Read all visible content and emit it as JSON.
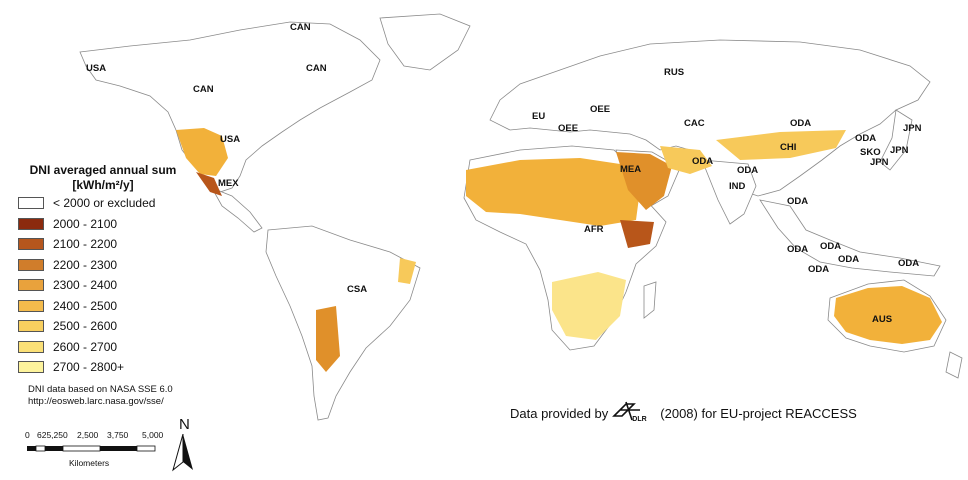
{
  "map": {
    "region_labels": {
      "can_north": "CAN",
      "usa_alaska": "USA",
      "can_east": "CAN",
      "can_main": "CAN",
      "usa": "USA",
      "mex": "MEX",
      "csa": "CSA",
      "rus": "RUS",
      "eu": "EU",
      "oee_1": "OEE",
      "oee_2": "OEE",
      "cac": "CAC",
      "oda_north": "ODA",
      "mea": "MEA",
      "oda_mideast": "ODA",
      "chi": "CHI",
      "oda_korea": "ODA",
      "sko": "SKO",
      "jpn_1": "JPN",
      "jpn_2": "JPN",
      "jpn_3": "JPN",
      "ind": "IND",
      "oda_india": "ODA",
      "oda_sea1": "ODA",
      "oda_sea2": "ODA",
      "oda_sea3": "ODA",
      "oda_sea4": "ODA",
      "oda_sea5": "ODA",
      "oda_pacific": "ODA",
      "afr": "AFR",
      "aus": "AUS"
    }
  },
  "legend": {
    "title_line1": "DNI averaged annual sum",
    "title_line2": "[kWh/m²/y]",
    "items": [
      {
        "label": "< 2000 or excluded",
        "color": "#ffffff"
      },
      {
        "label": "2000 - 2100",
        "color": "#8b2a0e"
      },
      {
        "label": "2100 - 2200",
        "color": "#b5561d"
      },
      {
        "label": "2200 - 2300",
        "color": "#d07d2b"
      },
      {
        "label": "2300 - 2400",
        "color": "#e9a23c"
      },
      {
        "label": "2400 - 2500",
        "color": "#f4bb4c"
      },
      {
        "label": "2500 - 2600",
        "color": "#f8cf5f"
      },
      {
        "label": "2600 - 2700",
        "color": "#fbe077"
      },
      {
        "label": "2700 - 2800+",
        "color": "#fdf39c"
      }
    ]
  },
  "source": {
    "line1": "DNI data based on NASA SSE 6.0",
    "line2": "http://eosweb.larc.nasa.gov/sse/"
  },
  "scale": {
    "ticks": [
      "0",
      "625",
      "1,250",
      "2,500",
      "3,750",
      "5,000"
    ],
    "tick_625_1250": "625,250",
    "units": "Kilometers"
  },
  "north_label": "N",
  "credit": {
    "prefix": "Data provided by",
    "logo_text": "DLR",
    "suffix": "(2008) for EU-project REACCESS"
  }
}
